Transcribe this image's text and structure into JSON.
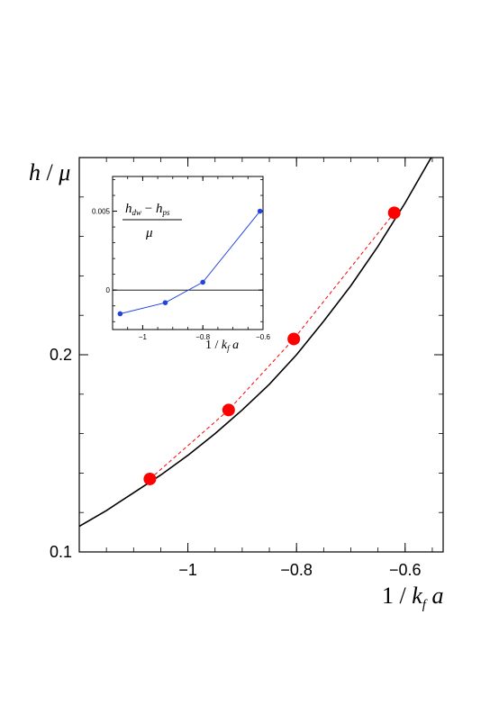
{
  "chart_data": [
    {
      "type": "line",
      "ylabel": "h / μ",
      "xlabel": "1 / k_f a",
      "xlim": [
        -1.2,
        -0.53
      ],
      "ylim": [
        0.1,
        0.3
      ],
      "xticks": [
        -1,
        -0.8,
        -0.6
      ],
      "xtick_labels": [
        "−1",
        "−0.8",
        "−0.6"
      ],
      "yticks": [
        0.1,
        0.2
      ],
      "ytick_labels": [
        "0.1",
        "0.2"
      ],
      "grid": false,
      "series": [
        {
          "style": "curve",
          "color": "#000000",
          "x": [
            -1.2,
            -1.15,
            -1.1,
            -1.05,
            -1.0,
            -0.95,
            -0.9,
            -0.85,
            -0.8,
            -0.75,
            -0.7,
            -0.65,
            -0.6,
            -0.55
          ],
          "y": [
            0.113,
            0.121,
            0.13,
            0.139,
            0.149,
            0.16,
            0.172,
            0.185,
            0.2,
            0.217,
            0.235,
            0.255,
            0.277,
            0.301
          ]
        },
        {
          "style": "points",
          "color": "#ff0000",
          "x": [
            -1.07,
            -0.925,
            -0.805,
            -0.62
          ],
          "y": [
            0.137,
            0.172,
            0.208,
            0.272
          ]
        },
        {
          "style": "dashed",
          "color": "#ff0000",
          "x": [
            -1.07,
            -0.925,
            -0.805,
            -0.62
          ],
          "y": [
            0.137,
            0.172,
            0.208,
            0.272
          ]
        }
      ]
    },
    {
      "type": "line",
      "inset": true,
      "ylabel": "(h_dw − h_ps) / μ",
      "xlabel": "1 / k_f a",
      "xlim": [
        -1.1,
        -0.6
      ],
      "ylim": [
        -0.0025,
        0.0072
      ],
      "xticks": [
        -1,
        -0.8,
        -0.6
      ],
      "xtick_labels": [
        "−1",
        "−0.8",
        "−0.6"
      ],
      "yticks": [
        0,
        0.005
      ],
      "ytick_labels": [
        "0",
        "0.005"
      ],
      "zero_line": true,
      "series": [
        {
          "color": "#2244dd",
          "x": [
            -1.075,
            -0.925,
            -0.8,
            -0.61
          ],
          "y": [
            -0.0015,
            -0.0008,
            0.0005,
            0.005
          ]
        }
      ]
    }
  ]
}
